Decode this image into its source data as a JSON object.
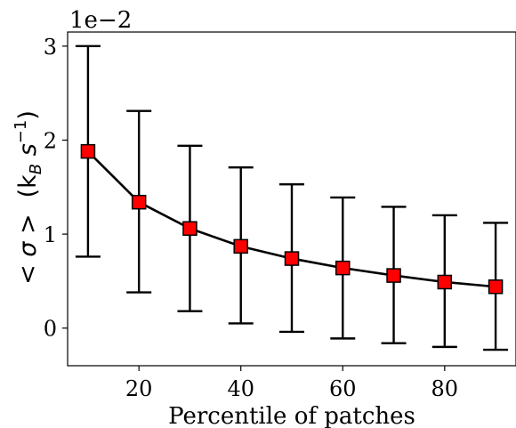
{
  "chart_data": {
    "type": "line",
    "xlabel": "Percentile of patches",
    "ylabel_main": "< σ >",
    "ylabel_unit": "(k",
    "ylabel_sub": "B",
    "ylabel_s": " s",
    "ylabel_sup": "−1",
    "ylabel_close": ")",
    "y_offset_label": "1e−2",
    "xlim": [
      6,
      94
    ],
    "ylim": [
      -0.4,
      3.15
    ],
    "xticks": [
      20,
      40,
      60,
      80
    ],
    "yticks": [
      0,
      1,
      2,
      3
    ],
    "grid": false,
    "series": [
      {
        "color": "#000000",
        "marker_color": "#ff0000",
        "marker": "square",
        "x": [
          10,
          20,
          30,
          40,
          50,
          60,
          70,
          80,
          90
        ],
        "y": [
          1.88,
          1.34,
          1.06,
          0.87,
          0.74,
          0.64,
          0.56,
          0.49,
          0.44
        ],
        "err_low": [
          0.76,
          0.38,
          0.18,
          0.05,
          -0.04,
          -0.11,
          -0.16,
          -0.2,
          -0.23
        ],
        "err_high": [
          3.0,
          2.31,
          1.94,
          1.71,
          1.53,
          1.39,
          1.29,
          1.2,
          1.12
        ]
      }
    ]
  }
}
